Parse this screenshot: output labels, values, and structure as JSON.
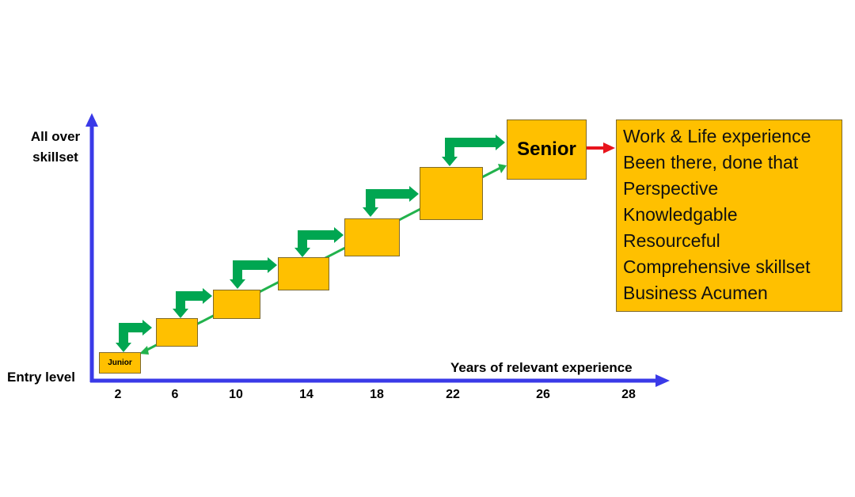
{
  "y_axis": {
    "top_label": "All over skillset",
    "bottom_label": "Entry level"
  },
  "x_axis": {
    "label": "Years of relevant experience",
    "ticks": [
      "2",
      "6",
      "10",
      "14",
      "18",
      "22",
      "26",
      "28"
    ]
  },
  "levels": {
    "start": "Junior",
    "end": "Senior"
  },
  "senior_traits": [
    "Work & Life experience",
    "Been there, done that",
    "Perspective",
    "Knowledgable",
    "Resourceful",
    "Comprehensive skillset",
    "Business Acumen"
  ],
  "colors": {
    "axis": "#3A3AE8",
    "box": "#FFC000",
    "step_arrow": "#00A651",
    "trend_line": "#22B24C",
    "pointer_arrow": "#E8141C"
  }
}
